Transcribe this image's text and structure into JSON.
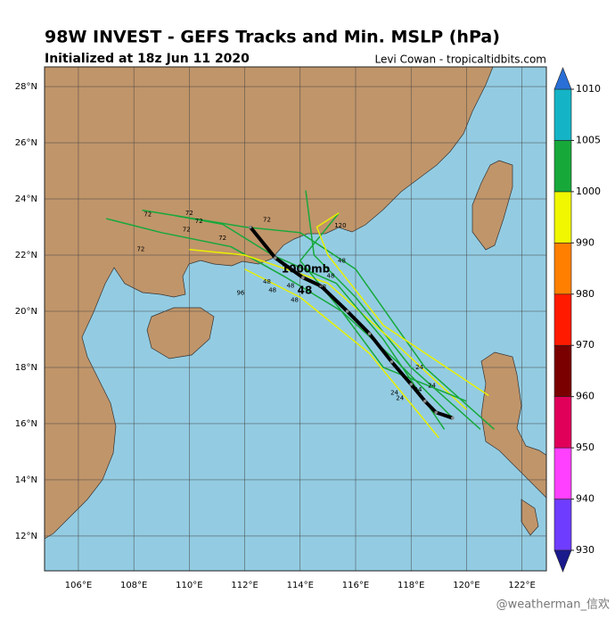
{
  "title": "98W INVEST - GEFS Tracks and Min. MSLP (hPa)",
  "subtitle": "Initialized at 18z Jun 11 2020",
  "credit": "Levi Cowan - tropicaltidbits.com",
  "watermark": "@weatherman_信欢",
  "annotation": {
    "pressure": "1000mb",
    "hour": "48"
  },
  "map": {
    "xlim": [
      104.78,
      122.88
    ],
    "ylim": [
      10.76,
      28.7
    ],
    "xticks": [
      {
        "value": 106,
        "label": "106°E"
      },
      {
        "value": 108,
        "label": "108°E"
      },
      {
        "value": 110,
        "label": "110°E"
      },
      {
        "value": 112,
        "label": "112°E"
      },
      {
        "value": 114,
        "label": "114°E"
      },
      {
        "value": 116,
        "label": "116°E"
      },
      {
        "value": 118,
        "label": "118°E"
      },
      {
        "value": 120,
        "label": "120°E"
      },
      {
        "value": 122,
        "label": "122°E"
      }
    ],
    "yticks": [
      {
        "value": 12,
        "label": "12°N"
      },
      {
        "value": 14,
        "label": "14°N"
      },
      {
        "value": 16,
        "label": "16°N"
      },
      {
        "value": 18,
        "label": "18°N"
      },
      {
        "value": 20,
        "label": "20°N"
      },
      {
        "value": 22,
        "label": "22°N"
      },
      {
        "value": 24,
        "label": "24°N"
      },
      {
        "value": 26,
        "label": "26°N"
      },
      {
        "value": 28,
        "label": "28°N"
      }
    ],
    "tracks": [
      {
        "color": "#17a83a",
        "lon": [
          119.5,
          117.5,
          115.5,
          113.5,
          111.5,
          109.0,
          107.0
        ],
        "lat": [
          16.2,
          18.2,
          20.0,
          21.2,
          22.3,
          22.8,
          23.3
        ]
      },
      {
        "color": "#17a83a",
        "lon": [
          120.5,
          118.0,
          116.0,
          114.5,
          114.2
        ],
        "lat": [
          15.8,
          18.0,
          20.5,
          22.0,
          24.3
        ]
      },
      {
        "color": "#e8f000",
        "lon": [
          120.0,
          117.5,
          115.0,
          112.0,
          110.0
        ],
        "lat": [
          16.5,
          18.8,
          21.0,
          22.0,
          22.2
        ]
      },
      {
        "color": "#e8f000",
        "lon": [
          119.0,
          116.5,
          114.0,
          112.0
        ],
        "lat": [
          15.5,
          18.5,
          20.5,
          21.5
        ]
      },
      {
        "color": "#17a83a",
        "lon": [
          121.0,
          118.5,
          116.0,
          114.0,
          112.0,
          108.3
        ],
        "lat": [
          15.8,
          18.0,
          21.5,
          22.8,
          23.0,
          23.6
        ]
      },
      {
        "color": "#17a83a",
        "lon": [
          120.0,
          117.0,
          115.5,
          114.0,
          115.4
        ],
        "lat": [
          16.8,
          18.0,
          20.0,
          21.8,
          23.5
        ]
      },
      {
        "color": "#e8f000",
        "lon": [
          120.8,
          117.0,
          115.0,
          114.6,
          115.4
        ],
        "lat": [
          17.0,
          19.5,
          22.0,
          23.0,
          23.5
        ]
      },
      {
        "color": "#17a83a",
        "lon": [
          119.2,
          117.0,
          115.3,
          113.0,
          111.2,
          109.5
        ],
        "lat": [
          15.8,
          19.0,
          21.0,
          22.0,
          23.1,
          23.4
        ]
      }
    ],
    "mean_track": {
      "color": "#000000",
      "lon": [
        119.5,
        118.9,
        118.5,
        118.0,
        117.3,
        116.5,
        115.7,
        114.75,
        114.1,
        113.1,
        112.2
      ],
      "lat": [
        16.2,
        16.4,
        16.8,
        17.4,
        18.2,
        19.2,
        20.0,
        20.9,
        21.2,
        21.9,
        23.0
      ]
    },
    "hour_labels": [
      {
        "hour": 72,
        "lon": 108.5,
        "lat": 23.45
      },
      {
        "hour": 72,
        "lon": 110.0,
        "lat": 23.5
      },
      {
        "hour": 72,
        "lon": 110.35,
        "lat": 23.2
      },
      {
        "hour": 72,
        "lon": 109.9,
        "lat": 22.9
      },
      {
        "hour": 72,
        "lon": 111.2,
        "lat": 22.6
      },
      {
        "hour": 72,
        "lon": 108.25,
        "lat": 22.2
      },
      {
        "hour": 72,
        "lon": 112.8,
        "lat": 23.25
      },
      {
        "hour": 120,
        "lon": 115.45,
        "lat": 23.05
      },
      {
        "hour": 48,
        "lon": 115.5,
        "lat": 21.8
      },
      {
        "hour": 96,
        "lon": 111.85,
        "lat": 20.65
      },
      {
        "hour": 48,
        "lon": 112.8,
        "lat": 21.05
      },
      {
        "hour": 48,
        "lon": 113.0,
        "lat": 20.75
      },
      {
        "hour": 48,
        "lon": 113.65,
        "lat": 20.9
      },
      {
        "hour": 48,
        "lon": 113.8,
        "lat": 20.4
      },
      {
        "hour": 48,
        "lon": 114.8,
        "lat": 20.85
      },
      {
        "hour": 48,
        "lon": 115.1,
        "lat": 21.25
      },
      {
        "hour": 24,
        "lon": 118.3,
        "lat": 18.0
      },
      {
        "hour": 24,
        "lon": 118.25,
        "lat": 17.2
      },
      {
        "hour": 24,
        "lon": 118.75,
        "lat": 17.35
      },
      {
        "hour": 24,
        "lon": 117.4,
        "lat": 17.1
      },
      {
        "hour": 24,
        "lon": 117.6,
        "lat": 16.9
      }
    ]
  },
  "colorbar": {
    "levels": [
      930,
      940,
      950,
      960,
      970,
      980,
      990,
      1000,
      1005,
      1010
    ],
    "colors": [
      "#6e3cff",
      "#ff40ff",
      "#e0005a",
      "#7a0000",
      "#ff1a00",
      "#ff7f00",
      "#f0f700",
      "#17a83a",
      "#14b4c6"
    ],
    "extend_colors": [
      "#1a1a8c",
      "#2a6fd6"
    ]
  }
}
